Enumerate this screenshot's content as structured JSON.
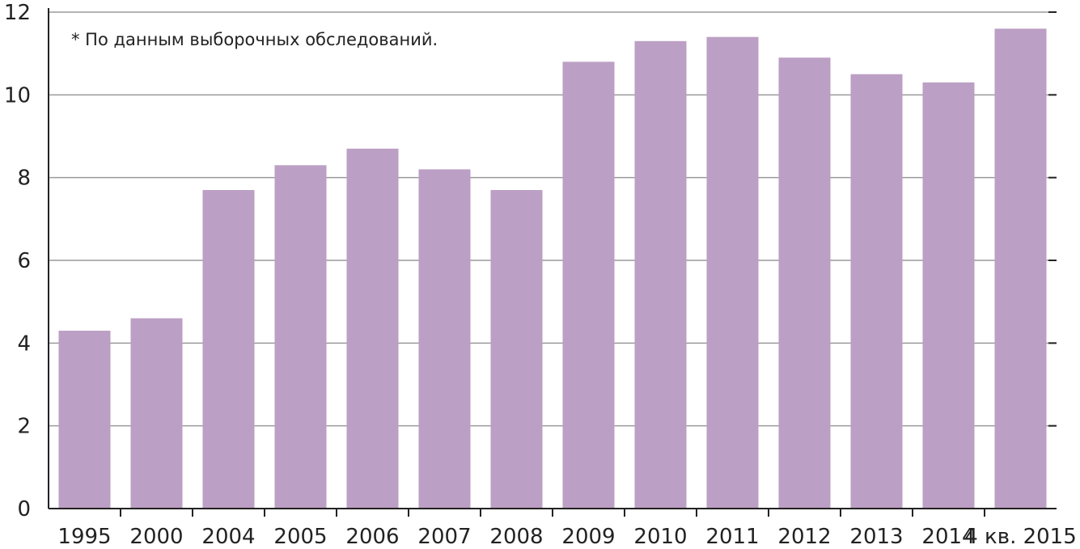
{
  "chart_data": {
    "type": "bar",
    "categories": [
      "1995",
      "2000",
      "2004",
      "2005",
      "2006",
      "2007",
      "2008",
      "2009",
      "2010",
      "2011",
      "2012",
      "2013",
      "2014",
      "4 кв. 2015"
    ],
    "values": [
      4.3,
      4.6,
      7.7,
      8.3,
      8.7,
      8.2,
      7.7,
      10.8,
      11.3,
      11.4,
      10.9,
      10.5,
      10.3,
      11.6
    ],
    "y_ticks": [
      0,
      2,
      4,
      6,
      8,
      10,
      12
    ],
    "ylim": [
      0,
      12
    ],
    "grid": true,
    "annotation": "* По данным выборочных обследований.",
    "bar_color": "#bc9fc4",
    "grid_color": "#9a9a9a",
    "axis_color": "#222222"
  }
}
